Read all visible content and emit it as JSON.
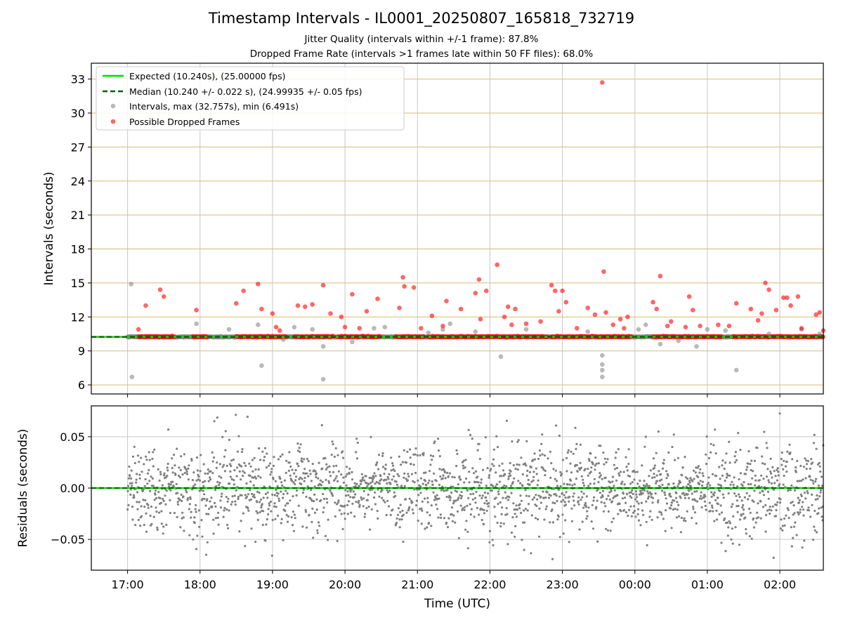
{
  "chart_data": [
    {
      "type": "scatter",
      "title": "Timestamp Intervals - IL0001_20250807_165818_732719",
      "subtitle_lines": [
        "Jitter Quality (intervals within +/-1 frame): 87.8%",
        "Dropped Frame Rate (intervals >1 frames late within 50 FF files): 68.0%"
      ],
      "ylabel": "Intervals (seconds)",
      "xlim_hours": [
        16.5,
        26.6
      ],
      "ylim": [
        5.2,
        34.4
      ],
      "y_ticks": [
        6,
        9,
        12,
        15,
        18,
        21,
        24,
        27,
        30,
        33
      ],
      "y_grid": true,
      "y_grid_color": "#d4bb77",
      "legend_position": "upper left",
      "legend": [
        "Expected (10.240s), (25.00000 fps)",
        "Median (10.240 +/- 0.022 s), (24.99935 +/- 0.05 fps)",
        "Intervals, max (32.757s), min (6.491s)",
        "Possible Dropped Frames"
      ],
      "expected_interval": 10.24,
      "median_interval": 10.24,
      "series": [
        {
          "name": "Intervals, max (32.757s), min (6.491s)",
          "color": "#808080",
          "points": [
            [
              17.05,
              14.9
            ],
            [
              17.06,
              6.7
            ],
            [
              17.95,
              11.4
            ],
            [
              18.4,
              10.9
            ],
            [
              18.8,
              11.3
            ],
            [
              18.85,
              7.7
            ],
            [
              19.15,
              10.0
            ],
            [
              19.3,
              11.1
            ],
            [
              19.55,
              10.9
            ],
            [
              19.7,
              9.4
            ],
            [
              19.7,
              6.5
            ],
            [
              20.1,
              9.8
            ],
            [
              20.4,
              11.0
            ],
            [
              20.55,
              11.1
            ],
            [
              21.15,
              10.6
            ],
            [
              21.35,
              10.9
            ],
            [
              21.45,
              11.4
            ],
            [
              21.8,
              10.7
            ],
            [
              22.15,
              8.5
            ],
            [
              22.5,
              10.9
            ],
            [
              23.35,
              10.7
            ],
            [
              23.55,
              8.6
            ],
            [
              23.55,
              7.8
            ],
            [
              23.55,
              7.3
            ],
            [
              23.55,
              6.7
            ],
            [
              24.05,
              10.9
            ],
            [
              24.15,
              11.3
            ],
            [
              24.35,
              9.6
            ],
            [
              24.6,
              9.9
            ],
            [
              24.85,
              9.4
            ],
            [
              25.0,
              10.9
            ],
            [
              25.25,
              10.8
            ],
            [
              25.4,
              7.3
            ],
            [
              25.85,
              10.5
            ],
            [
              26.3,
              10.9
            ],
            [
              26.55,
              10.5
            ]
          ]
        },
        {
          "name": "Possible Dropped Frames",
          "color": "#ff0000",
          "points": [
            [
              17.15,
              10.9
            ],
            [
              17.25,
              13.0
            ],
            [
              17.45,
              14.4
            ],
            [
              17.5,
              13.8
            ],
            [
              17.95,
              12.6
            ],
            [
              18.5,
              13.2
            ],
            [
              18.6,
              14.3
            ],
            [
              18.8,
              14.9
            ],
            [
              18.85,
              12.7
            ],
            [
              19.0,
              12.3
            ],
            [
              19.05,
              11.1
            ],
            [
              19.1,
              10.8
            ],
            [
              19.35,
              13.0
            ],
            [
              19.45,
              12.9
            ],
            [
              19.55,
              13.1
            ],
            [
              19.7,
              14.8
            ],
            [
              19.8,
              12.3
            ],
            [
              19.95,
              12.0
            ],
            [
              20.0,
              11.1
            ],
            [
              20.1,
              14.0
            ],
            [
              20.2,
              11.0
            ],
            [
              20.3,
              12.5
            ],
            [
              20.45,
              13.6
            ],
            [
              20.75,
              12.8
            ],
            [
              20.8,
              15.5
            ],
            [
              20.82,
              14.7
            ],
            [
              20.95,
              14.6
            ],
            [
              21.05,
              11.0
            ],
            [
              21.2,
              12.1
            ],
            [
              21.35,
              11.2
            ],
            [
              21.4,
              13.4
            ],
            [
              21.6,
              12.7
            ],
            [
              21.8,
              14.1
            ],
            [
              21.85,
              15.3
            ],
            [
              21.87,
              11.8
            ],
            [
              21.95,
              14.3
            ],
            [
              22.1,
              16.6
            ],
            [
              22.2,
              12.0
            ],
            [
              22.25,
              12.9
            ],
            [
              22.3,
              11.3
            ],
            [
              22.35,
              12.7
            ],
            [
              22.5,
              11.4
            ],
            [
              22.7,
              11.6
            ],
            [
              22.85,
              14.8
            ],
            [
              22.9,
              14.3
            ],
            [
              22.95,
              12.5
            ],
            [
              23.0,
              14.3
            ],
            [
              23.05,
              13.3
            ],
            [
              23.2,
              11.0
            ],
            [
              23.35,
              12.8
            ],
            [
              23.45,
              12.2
            ],
            [
              23.55,
              32.7
            ],
            [
              23.57,
              16.0
            ],
            [
              23.6,
              12.4
            ],
            [
              23.7,
              11.3
            ],
            [
              23.8,
              11.8
            ],
            [
              23.85,
              11.0
            ],
            [
              23.9,
              12.0
            ],
            [
              24.25,
              13.3
            ],
            [
              24.3,
              12.7
            ],
            [
              24.35,
              15.6
            ],
            [
              24.45,
              11.2
            ],
            [
              24.5,
              11.6
            ],
            [
              24.7,
              11.1
            ],
            [
              24.75,
              13.8
            ],
            [
              24.8,
              12.6
            ],
            [
              24.9,
              11.2
            ],
            [
              25.15,
              11.3
            ],
            [
              25.3,
              11.2
            ],
            [
              25.4,
              13.2
            ],
            [
              25.6,
              12.7
            ],
            [
              25.7,
              11.7
            ],
            [
              25.75,
              12.3
            ],
            [
              25.8,
              15.0
            ],
            [
              25.85,
              14.4
            ],
            [
              25.95,
              12.6
            ],
            [
              26.05,
              13.7
            ],
            [
              26.1,
              13.7
            ],
            [
              26.15,
              13.0
            ],
            [
              26.25,
              13.8
            ],
            [
              26.3,
              11.0
            ],
            [
              26.5,
              12.2
            ],
            [
              26.55,
              12.4
            ],
            [
              26.6,
              10.8
            ]
          ]
        }
      ]
    },
    {
      "type": "scatter",
      "xlabel": "Time (UTC)",
      "ylabel": "Residuals (seconds)",
      "xlim_hours": [
        16.5,
        26.6
      ],
      "ylim": [
        -0.08,
        0.08
      ],
      "y_ticks": [
        -0.05,
        0.0,
        0.05
      ],
      "y_tick_labels": [
        "−0.05",
        "0.00",
        "0.05"
      ],
      "x_ticks": [
        17,
        18,
        19,
        20,
        21,
        22,
        23,
        24,
        25,
        26
      ],
      "x_tick_labels": [
        "17:00",
        "18:00",
        "19:00",
        "20:00",
        "21:00",
        "22:00",
        "23:00",
        "00:00",
        "01:00",
        "02:00"
      ],
      "grid": true,
      "residual_sigma": 0.022,
      "colors": {
        "residual_points": "#808080",
        "zero_line": "#00dd00",
        "median_line": "#006400",
        "grid": "#c8c8c8"
      }
    }
  ]
}
